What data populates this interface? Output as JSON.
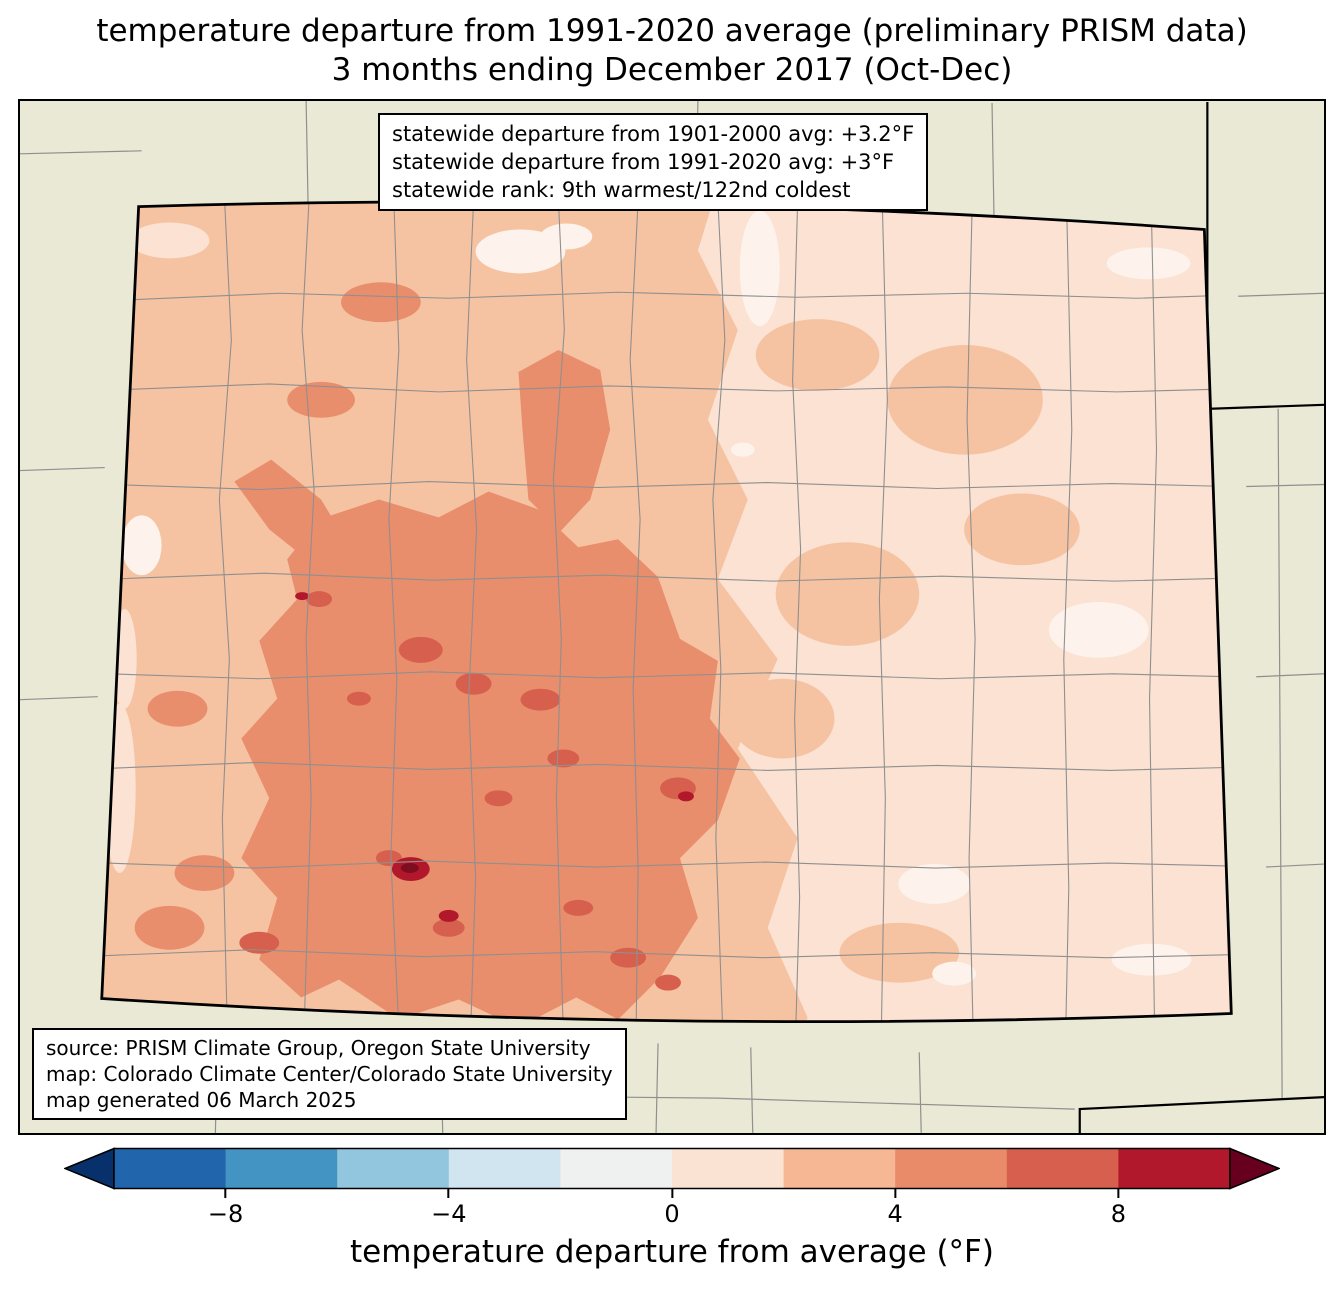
{
  "title": {
    "line1": "temperature departure from 1991-2020 average (preliminary PRISM data)",
    "line2": "3 months ending December 2017 (Oct-Dec)"
  },
  "stats_box": {
    "lines": [
      "statewide departure from 1901-2000 avg: +3.2°F",
      "statewide departure from 1991-2020 avg: +3°F",
      "statewide rank: 9th warmest/122nd coldest"
    ]
  },
  "source_box": {
    "lines": [
      "source: PRISM Climate Group, Oregon State University",
      "map: Colorado Climate Center/Colorado State University",
      "map generated 06 March 2025"
    ]
  },
  "colorbar": {
    "label": "temperature departure from average (°F)",
    "ticks": [
      {
        "label": "−8",
        "value": -8,
        "pos": 0.1
      },
      {
        "label": "−4",
        "value": -4,
        "pos": 0.3
      },
      {
        "label": "0",
        "value": 0,
        "pos": 0.5
      },
      {
        "label": "4",
        "value": 4,
        "pos": 0.7
      },
      {
        "label": "8",
        "value": 8,
        "pos": 0.9
      }
    ],
    "range_f": [
      -10,
      10
    ],
    "bin_width_f": 2,
    "under_color": "#08306b",
    "over_color": "#67001f",
    "segment_colors": [
      "#2166ac",
      "#4393c3",
      "#92c5de",
      "#d1e5f0",
      "#eef1f0",
      "#fbe3d4",
      "#f6b894",
      "#e98a68",
      "#d6604d",
      "#b2182b"
    ]
  },
  "theme": {
    "page-bg": "#ffffff",
    "margin-beige": "#e9e9d6",
    "state-base": "#f6c3a2",
    "shade-white": "#fdf3ec",
    "shade-light": "#fbe2d3",
    "shade-mid": "#e98e6c",
    "shade-deep": "#d6604d",
    "shade-dark": "#b2182b",
    "shade-maroon": "#7e0d20",
    "county-line": "#8f8f8f",
    "state-border": "#000000"
  }
}
